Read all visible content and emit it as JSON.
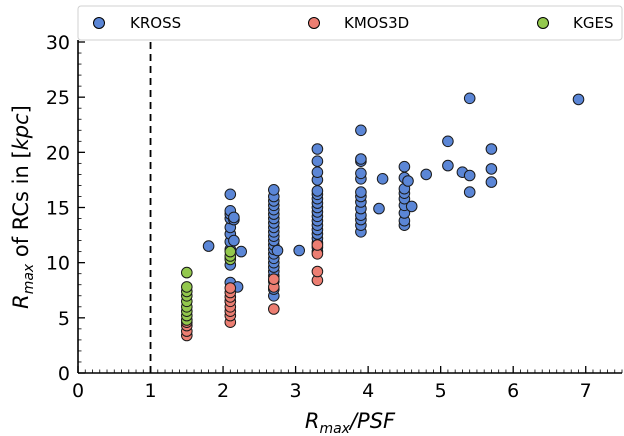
{
  "chart_data": {
    "type": "scatter",
    "xlabel": {
      "main": "R",
      "sub": "max",
      "rest": "/PSF"
    },
    "ylabel": {
      "main": "R",
      "sub": "max",
      "rest": " of RCs in [",
      "unit": "kpc",
      "close": "]"
    },
    "xlim": [
      0,
      7.5
    ],
    "ylim": [
      0,
      30
    ],
    "x_ticks": [
      "0",
      "1",
      "2",
      "3",
      "4",
      "5",
      "6",
      "7"
    ],
    "y_ticks": [
      "0",
      "5",
      "10",
      "15",
      "20",
      "25",
      "30"
    ],
    "vline": 1,
    "legend_position": "top",
    "series": [
      {
        "name": "KROSS",
        "color": "#5b86d6",
        "points": [
          [
            1.8,
            11.5
          ],
          [
            2.1,
            6.5
          ],
          [
            2.1,
            8.2
          ],
          [
            2.1,
            9.8
          ],
          [
            2.1,
            10.5
          ],
          [
            2.1,
            11.2
          ],
          [
            2.1,
            11.9
          ],
          [
            2.1,
            12.6
          ],
          [
            2.1,
            13.2
          ],
          [
            2.1,
            14.0
          ],
          [
            2.1,
            14.4
          ],
          [
            2.1,
            14.7
          ],
          [
            2.1,
            16.2
          ],
          [
            2.15,
            12.0
          ],
          [
            2.15,
            13.9
          ],
          [
            2.15,
            14.1
          ],
          [
            2.2,
            7.8
          ],
          [
            2.25,
            11.0
          ],
          [
            2.7,
            7.0
          ],
          [
            2.7,
            7.6
          ],
          [
            2.7,
            8.3
          ],
          [
            2.7,
            8.8
          ],
          [
            2.7,
            9.2
          ],
          [
            2.7,
            9.6
          ],
          [
            2.7,
            10.0
          ],
          [
            2.7,
            10.4
          ],
          [
            2.7,
            10.8
          ],
          [
            2.7,
            11.2
          ],
          [
            2.7,
            11.6
          ],
          [
            2.7,
            12.0
          ],
          [
            2.7,
            12.4
          ],
          [
            2.7,
            12.8
          ],
          [
            2.7,
            13.2
          ],
          [
            2.7,
            13.6
          ],
          [
            2.7,
            14.0
          ],
          [
            2.7,
            14.4
          ],
          [
            2.7,
            14.8
          ],
          [
            2.7,
            15.2
          ],
          [
            2.7,
            15.6
          ],
          [
            2.7,
            16.0
          ],
          [
            2.7,
            16.6
          ],
          [
            2.75,
            11.1
          ],
          [
            3.05,
            11.1
          ],
          [
            3.3,
            11.0
          ],
          [
            3.3,
            11.4
          ],
          [
            3.3,
            11.8
          ],
          [
            3.3,
            12.2
          ],
          [
            3.3,
            12.6
          ],
          [
            3.3,
            13.0
          ],
          [
            3.3,
            13.4
          ],
          [
            3.3,
            13.8
          ],
          [
            3.3,
            14.2
          ],
          [
            3.3,
            14.6
          ],
          [
            3.3,
            15.0
          ],
          [
            3.3,
            15.4
          ],
          [
            3.3,
            15.8
          ],
          [
            3.3,
            16.2
          ],
          [
            3.3,
            16.5
          ],
          [
            3.3,
            17.5
          ],
          [
            3.3,
            18.2
          ],
          [
            3.3,
            19.2
          ],
          [
            3.3,
            20.3
          ],
          [
            3.9,
            12.8
          ],
          [
            3.9,
            13.4
          ],
          [
            3.9,
            13.9
          ],
          [
            3.9,
            14.3
          ],
          [
            3.9,
            14.9
          ],
          [
            3.9,
            15.5
          ],
          [
            3.9,
            16.0
          ],
          [
            3.9,
            16.4
          ],
          [
            3.9,
            17.6
          ],
          [
            3.9,
            18.1
          ],
          [
            3.9,
            19.2
          ],
          [
            3.9,
            19.4
          ],
          [
            3.9,
            22.0
          ],
          [
            4.15,
            14.9
          ],
          [
            4.2,
            17.6
          ],
          [
            4.5,
            13.4
          ],
          [
            4.5,
            13.8
          ],
          [
            4.5,
            14.5
          ],
          [
            4.5,
            15.2
          ],
          [
            4.5,
            15.8
          ],
          [
            4.5,
            16.3
          ],
          [
            4.5,
            16.7
          ],
          [
            4.5,
            17.7
          ],
          [
            4.5,
            18.7
          ],
          [
            4.55,
            17.4
          ],
          [
            4.6,
            15.1
          ],
          [
            4.8,
            18.0
          ],
          [
            5.1,
            18.8
          ],
          [
            5.1,
            21.0
          ],
          [
            5.3,
            18.2
          ],
          [
            5.4,
            16.4
          ],
          [
            5.4,
            17.9
          ],
          [
            5.4,
            24.9
          ],
          [
            5.7,
            17.3
          ],
          [
            5.7,
            18.5
          ],
          [
            5.7,
            20.3
          ],
          [
            6.9,
            24.8
          ]
        ]
      },
      {
        "name": "KMOS3D",
        "color": "#ec7e72",
        "points": [
          [
            1.5,
            3.4
          ],
          [
            1.5,
            3.8
          ],
          [
            1.5,
            4.3
          ],
          [
            1.5,
            4.6
          ],
          [
            2.1,
            4.6
          ],
          [
            2.1,
            5.2
          ],
          [
            2.1,
            5.6
          ],
          [
            2.1,
            6.0
          ],
          [
            2.1,
            6.5
          ],
          [
            2.1,
            6.9
          ],
          [
            2.1,
            7.3
          ],
          [
            2.1,
            7.7
          ],
          [
            2.7,
            5.8
          ],
          [
            2.7,
            7.8
          ],
          [
            2.7,
            8.5
          ],
          [
            3.3,
            8.4
          ],
          [
            3.3,
            9.2
          ],
          [
            3.3,
            10.8
          ],
          [
            3.3,
            11.6
          ]
        ]
      },
      {
        "name": "KGES",
        "color": "#93c84d",
        "points": [
          [
            1.5,
            4.8
          ],
          [
            1.5,
            5.2
          ],
          [
            1.5,
            5.6
          ],
          [
            1.5,
            6.0
          ],
          [
            1.5,
            6.5
          ],
          [
            1.5,
            7.0
          ],
          [
            1.5,
            7.4
          ],
          [
            1.5,
            7.8
          ],
          [
            1.5,
            9.1
          ],
          [
            2.1,
            10.3
          ],
          [
            2.1,
            10.6
          ],
          [
            2.1,
            11.0
          ]
        ]
      }
    ]
  }
}
